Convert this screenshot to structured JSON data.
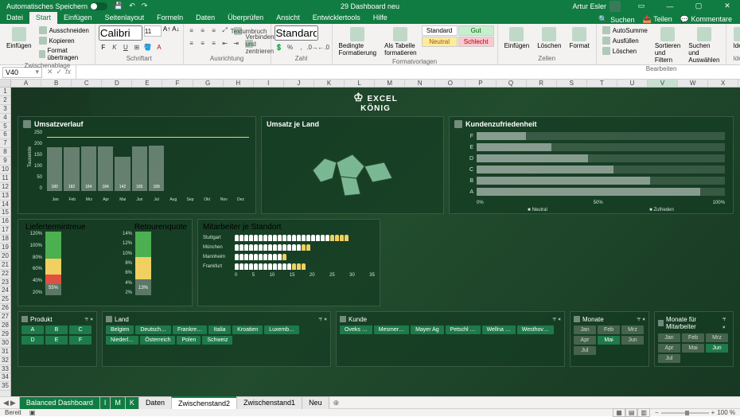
{
  "titlebar": {
    "autosave": "Automatisches Speichern",
    "doc": "29 Dashboard neu",
    "user": "Artur Esler"
  },
  "tabs": [
    "Datei",
    "Start",
    "Einfügen",
    "Seitenlayout",
    "Formeln",
    "Daten",
    "Überprüfen",
    "Ansicht",
    "Entwicklertools",
    "Hilfe"
  ],
  "active_tab": 1,
  "tabs_right": {
    "search": "Suchen",
    "share": "Teilen",
    "comments": "Kommentare"
  },
  "ribbon": {
    "clipboard": {
      "paste": "Einfügen",
      "cut": "Ausschneiden",
      "copy": "Kopieren",
      "format": "Format übertragen",
      "label": "Zwischenablage"
    },
    "font": {
      "name": "Calibri",
      "size": "11",
      "label": "Schriftart"
    },
    "align": {
      "wrap": "Textumbruch",
      "merge": "Verbinden und zentrieren",
      "label": "Ausrichtung"
    },
    "number": {
      "fmt": "Standard",
      "label": "Zahl"
    },
    "styles": {
      "cond": "Bedingte Formatierung",
      "table": "Als Tabelle formatieren",
      "std": "Standard",
      "gut": "Gut",
      "neu": "Neutral",
      "sch": "Schlecht",
      "label": "Formatvorlagen"
    },
    "cells": {
      "ins": "Einfügen",
      "del": "Löschen",
      "fmt": "Format",
      "label": "Zellen"
    },
    "editing": {
      "sum": "AutoSumme",
      "fill": "Ausfüllen",
      "clear": "Löschen",
      "sort": "Sortieren und Filtern",
      "find": "Suchen und Auswählen",
      "label": "Bearbeiten"
    },
    "ideas": {
      "btn": "Ideen",
      "label": "Ideen"
    }
  },
  "namebox": "V40",
  "columns": [
    "A",
    "B",
    "C",
    "D",
    "E",
    "F",
    "G",
    "H",
    "I",
    "J",
    "K",
    "L",
    "M",
    "N",
    "O",
    "P",
    "Q",
    "R",
    "S",
    "T",
    "U",
    "V",
    "W",
    "X"
  ],
  "selected_col": "V",
  "rows_count": 35,
  "logo": {
    "l1": "EXCEL",
    "l2": "KÖNIG"
  },
  "umsatz": {
    "title": "Umsatzverlauf",
    "ylabel": "Tausende",
    "ylim": [
      0,
      250
    ],
    "ystep": 50,
    "months": [
      "Jan",
      "Feb",
      "Mrz",
      "Apr",
      "Mai",
      "Jun",
      "Jul",
      "Aug",
      "Sep",
      "Okt",
      "Nov",
      "Dez"
    ],
    "values": [
      180,
      182,
      184,
      184,
      142,
      185,
      189,
      0,
      0,
      0,
      0,
      0
    ],
    "bar_color": "rgba(255,255,255,0.35)",
    "line_color": "#f0d060"
  },
  "land": {
    "title": "Umsatz je Land",
    "fill": "#7ab893"
  },
  "kunden": {
    "title": "Kundenzufriedenheit",
    "cats": [
      "F",
      "E",
      "D",
      "C",
      "B",
      "A"
    ],
    "vals": [
      20,
      30,
      45,
      55,
      70,
      90
    ],
    "xticks": [
      "0%",
      "50%",
      "100%"
    ],
    "legend": [
      "Neutral",
      "Zufrieden"
    ]
  },
  "liefer": {
    "title_l": "Liefertermintreue",
    "title_r": "Retourenquote",
    "left_y": [
      "120%",
      "100%",
      "80%",
      "60%",
      "40%",
      "20%"
    ],
    "right_y": [
      "14%",
      "12%",
      "10%",
      "8%",
      "6%",
      "4%",
      "2%"
    ],
    "left_val": "55%",
    "right_val": "13%",
    "left_stack": [
      {
        "c": "gr",
        "h": 18
      },
      {
        "c": "r",
        "h": 15
      },
      {
        "c": "y",
        "h": 25
      },
      {
        "c": "g",
        "h": 42
      }
    ],
    "right_stack": [
      {
        "c": "gr",
        "h": 25
      },
      {
        "c": "y",
        "h": 35
      },
      {
        "c": "g",
        "h": 40
      }
    ]
  },
  "mit": {
    "title": "Mitarbeiter je Standort",
    "rows": [
      {
        "l": "Stuttgart",
        "w": 20,
        "y": 4
      },
      {
        "l": "München",
        "w": 14,
        "y": 2
      },
      {
        "l": "Mannheim",
        "w": 10,
        "y": 1
      },
      {
        "l": "Frankfurt",
        "w": 12,
        "y": 3
      }
    ],
    "xticks": [
      "0",
      "5",
      "10",
      "15",
      "20",
      "25",
      "30",
      "35"
    ]
  },
  "slicers": [
    {
      "t": "Produkt",
      "btns": [
        [
          "A",
          1
        ],
        [
          "B",
          1
        ],
        [
          "C",
          1
        ],
        [
          "D",
          1
        ],
        [
          "E",
          1
        ],
        [
          "F",
          1
        ]
      ]
    },
    {
      "t": "Land",
      "btns": [
        [
          "Belgien",
          1
        ],
        [
          "Deutsch…",
          1
        ],
        [
          "Frankre…",
          1
        ],
        [
          "Italia",
          1
        ],
        [
          "Kroatien",
          1
        ],
        [
          "Luxemb…",
          1
        ],
        [
          "Niederl…",
          1
        ],
        [
          "Österreich",
          1
        ],
        [
          "Polen",
          1
        ],
        [
          "Schweiz",
          1
        ]
      ]
    },
    {
      "t": "Kunde",
      "btns": [
        [
          "Oveks …",
          1
        ],
        [
          "Mesmer…",
          1
        ],
        [
          "Mayer Ag",
          1
        ],
        [
          "Petschl …",
          1
        ],
        [
          "Wellna …",
          1
        ],
        [
          "Westhov…",
          1
        ]
      ]
    },
    {
      "t": "Monate",
      "btns": [
        [
          "Jan",
          0
        ],
        [
          "Feb",
          0
        ],
        [
          "Mrz",
          0
        ],
        [
          "Apr",
          0
        ],
        [
          "Mai",
          1
        ],
        [
          "Jun",
          0
        ],
        [
          "Jul",
          0
        ]
      ]
    },
    {
      "t": "Monate für Mitarbeiter",
      "btns": [
        [
          "Jan",
          0
        ],
        [
          "Feb",
          0
        ],
        [
          "Mrz",
          0
        ],
        [
          "Apr",
          0
        ],
        [
          "Mai",
          0
        ],
        [
          "Jun",
          1
        ],
        [
          "Jul",
          0
        ]
      ]
    }
  ],
  "sheets": [
    {
      "n": "Balanced Dashboard",
      "c": "green"
    },
    {
      "n": "I",
      "c": "green tiny"
    },
    {
      "n": "M",
      "c": "green tiny"
    },
    {
      "n": "K",
      "c": "green tiny"
    },
    {
      "n": "Daten",
      "c": ""
    },
    {
      "n": "Zwischenstand2",
      "c": "active"
    },
    {
      "n": "Zwischenstand1",
      "c": ""
    },
    {
      "n": "Neu",
      "c": ""
    }
  ],
  "status": {
    "ready": "Bereit",
    "zoom": "100 %"
  }
}
